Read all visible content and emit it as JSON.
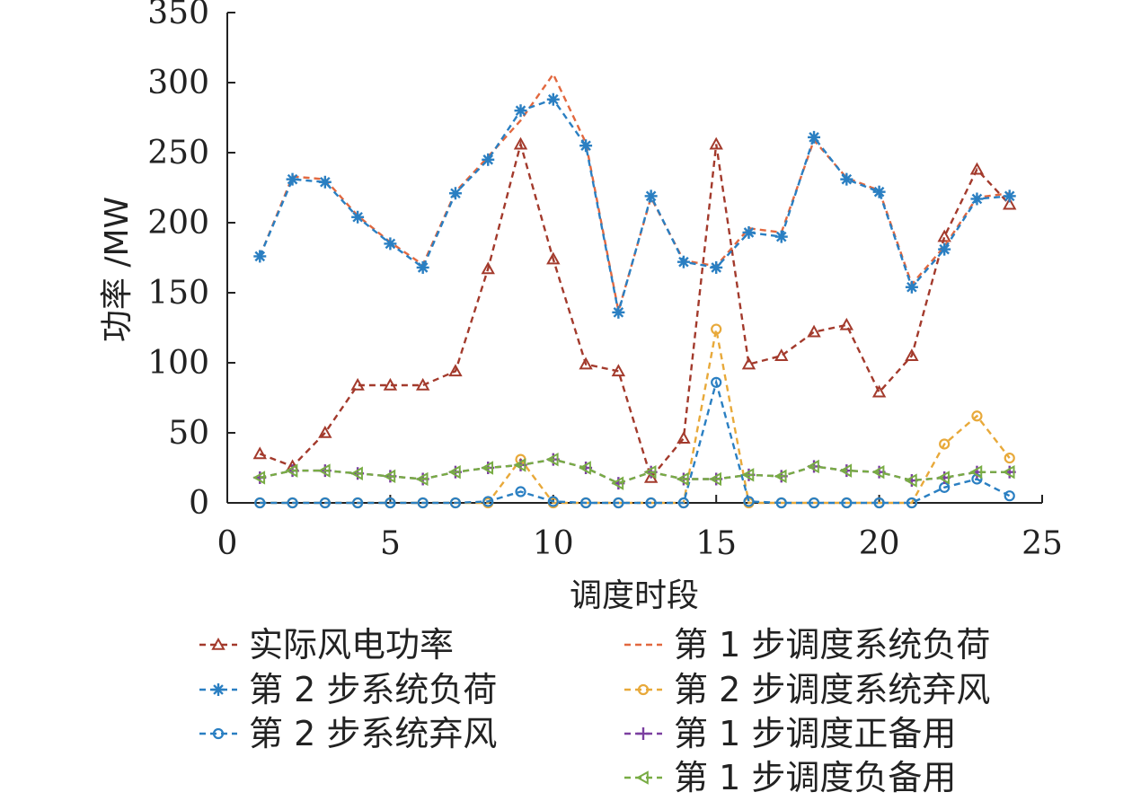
{
  "chart_data": {
    "type": "line",
    "title": "",
    "xlabel": "调度时段",
    "ylabel": "功率 /MW",
    "xlim": [
      0,
      25
    ],
    "ylim": [
      0,
      350
    ],
    "xticks": [
      0,
      5,
      10,
      15,
      20,
      25
    ],
    "yticks": [
      0,
      50,
      100,
      150,
      200,
      250,
      300,
      350
    ],
    "grid": false,
    "legend_position": "bottom",
    "x": [
      1,
      2,
      3,
      4,
      5,
      6,
      7,
      8,
      9,
      10,
      11,
      12,
      13,
      14,
      15,
      16,
      17,
      18,
      19,
      20,
      21,
      22,
      23,
      24
    ],
    "series": [
      {
        "name": "实际风电功率",
        "color": "#a33a2c",
        "marker": "triangle",
        "values": [
          35,
          26,
          50,
          84,
          84,
          84,
          94,
          167,
          256,
          174,
          99,
          94,
          18,
          46,
          256,
          99,
          105,
          122,
          127,
          79,
          105,
          190,
          238,
          213
        ]
      },
      {
        "name": "第 1 步调度系统负荷",
        "color": "#e2683f",
        "marker": "none",
        "values": [
          176,
          233,
          231,
          205,
          186,
          170,
          222,
          247,
          273,
          306,
          257,
          137,
          218,
          173,
          169,
          196,
          193,
          259,
          232,
          223,
          156,
          183,
          218,
          221
        ]
      },
      {
        "name": "第 2 步系统负荷",
        "color": "#2a7fc2",
        "marker": "asterisk",
        "values": [
          176,
          231,
          229,
          204,
          185,
          168,
          221,
          245,
          280,
          288,
          255,
          136,
          219,
          172,
          168,
          193,
          190,
          261,
          231,
          222,
          154,
          181,
          217,
          219
        ]
      },
      {
        "name": "第 2 步调度系统弃风",
        "color": "#e8a93a",
        "marker": "circle",
        "values": [
          0,
          0,
          0,
          0,
          0,
          0,
          0,
          0,
          31,
          0,
          0,
          0,
          0,
          0,
          124,
          0,
          0,
          0,
          0,
          0,
          0,
          42,
          62,
          32
        ]
      },
      {
        "name": "第 2 步系统弃风",
        "color": "#2a7fc2",
        "marker": "circle",
        "values": [
          0,
          0,
          0,
          0,
          0,
          0,
          0,
          1,
          8,
          1,
          0,
          0,
          0,
          0,
          86,
          1,
          0,
          0,
          0,
          0,
          0,
          11,
          17,
          5
        ]
      },
      {
        "name": "第 1 步调度正备用",
        "color": "#7b3fa0",
        "marker": "plus",
        "values": [
          18,
          23,
          23,
          21,
          19,
          17,
          22,
          25,
          27,
          31,
          25,
          14,
          22,
          17,
          17,
          20,
          19,
          26,
          23,
          22,
          16,
          18,
          22,
          22
        ]
      },
      {
        "name": "第 1 步调度负备用",
        "color": "#78ac44",
        "marker": "triangle-left",
        "values": [
          18,
          23,
          23,
          21,
          19,
          17,
          22,
          25,
          27,
          31,
          25,
          14,
          22,
          17,
          17,
          20,
          19,
          26,
          23,
          22,
          16,
          18,
          22,
          22
        ]
      }
    ],
    "legend": [
      {
        "label": "实际风电功率",
        "series": 0
      },
      {
        "label": "第 1 步调度系统负荷",
        "series": 1
      },
      {
        "label": "第 2 步系统负荷",
        "series": 2
      },
      {
        "label": "第 2 步调度系统弃风",
        "series": 3
      },
      {
        "label": "第 2 步系统弃风",
        "series": 4
      },
      {
        "label": "第 1 步调度正备用",
        "series": 5
      },
      {
        "label": "第 1 步调度负备用",
        "series": 6
      }
    ]
  }
}
